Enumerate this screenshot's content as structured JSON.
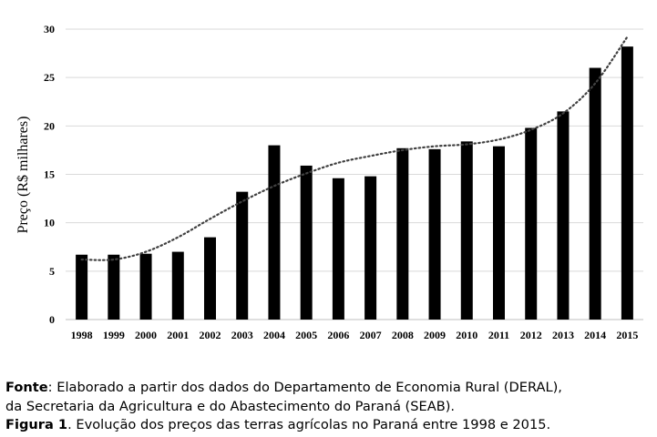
{
  "chart_data": {
    "type": "bar",
    "title": "",
    "xlabel": "",
    "ylabel": "Preço (R$ milhares)",
    "ylim": [
      0,
      30
    ],
    "yticks": [
      0,
      5,
      10,
      15,
      20,
      25,
      30
    ],
    "grid": true,
    "categories": [
      "1998",
      "1999",
      "2000",
      "2001",
      "2002",
      "2003",
      "2004",
      "2005",
      "2006",
      "2007",
      "2008",
      "2009",
      "2010",
      "2011",
      "2012",
      "2013",
      "2014",
      "2015"
    ],
    "values": [
      6.7,
      6.7,
      6.8,
      7.0,
      8.5,
      13.2,
      18.0,
      15.9,
      14.6,
      14.8,
      17.7,
      17.6,
      18.4,
      17.9,
      19.8,
      21.5,
      26.0,
      28.2
    ],
    "trendline": {
      "style": "dotted",
      "values": [
        6.2,
        6.2,
        7.0,
        8.5,
        10.4,
        12.2,
        13.8,
        15.1,
        16.2,
        16.9,
        17.5,
        17.9,
        18.1,
        18.6,
        19.6,
        21.3,
        24.4,
        29.2
      ]
    },
    "colors": {
      "bar": "#000000",
      "grid": "#d9d9d9",
      "trend": "#404040"
    }
  },
  "caption": {
    "source_label": "Fonte",
    "source_text_1": ": Elaborado a partir dos dados do Departamento de Economia Rural (DERAL),",
    "source_text_2": "da Secretaria da Agricultura e do Abastecimento do Paraná (SEAB).",
    "figure_label": "Figura 1",
    "figure_text": ". Evolução dos preços das terras agrícolas no Paraná entre 1998 e 2015."
  }
}
